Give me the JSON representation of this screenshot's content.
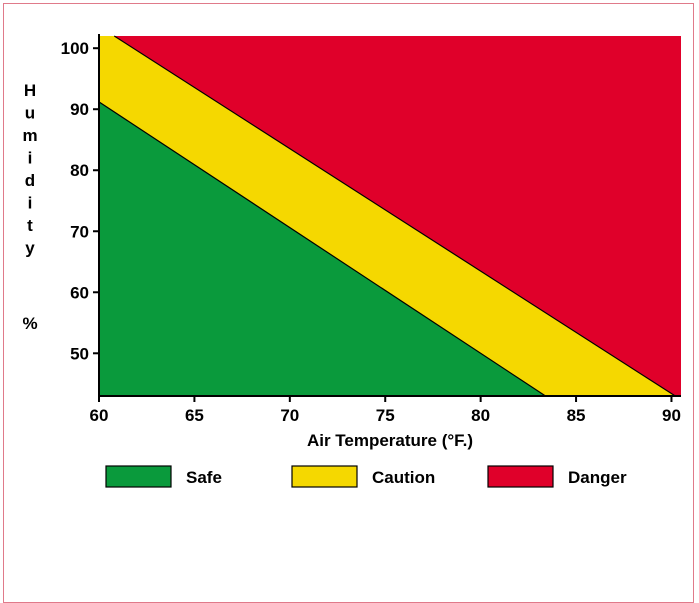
{
  "chart_data": {
    "type": "area",
    "xlabel": "Air Temperature (°F.)",
    "ylabel": "Humidity %",
    "ylabel_letters": [
      "H",
      "u",
      "m",
      "i",
      "d",
      "i",
      "t",
      "y"
    ],
    "ylabel_unit": "%",
    "xlim": [
      60,
      90.5
    ],
    "ylim": [
      43,
      102
    ],
    "x_ticks": [
      60,
      65,
      70,
      75,
      80,
      85,
      90
    ],
    "y_ticks": [
      100,
      90,
      80,
      70,
      60,
      50
    ],
    "boundaries": [
      {
        "name": "Safe/Caution",
        "points": [
          [
            60,
            91.2
          ],
          [
            83.4,
            43
          ]
        ]
      },
      {
        "name": "Caution/Danger",
        "points": [
          [
            60.8,
            102
          ],
          [
            90.2,
            43
          ]
        ]
      }
    ],
    "regions": [
      {
        "name": "Safe",
        "color": "#0a9a3c"
      },
      {
        "name": "Caution",
        "color": "#f5d800"
      },
      {
        "name": "Danger",
        "color": "#e0002a"
      }
    ],
    "legend": {
      "placement": "bottom",
      "entries": [
        "Safe",
        "Caution",
        "Danger"
      ]
    }
  }
}
